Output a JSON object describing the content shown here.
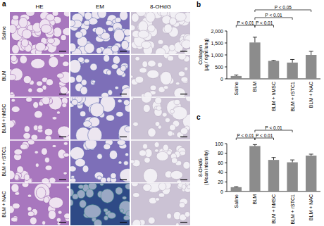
{
  "panel_a": {
    "label": "a",
    "columns": [
      "HE",
      "EM",
      "8-OHdG"
    ],
    "rows": [
      "Saline",
      "BLM",
      "BLM + hMSC",
      "BLM + rSTC1",
      "BLM + NAC"
    ]
  },
  "chart_data": [
    {
      "type": "bar",
      "title": "b",
      "y_label": [
        "Collagen",
        "(µg / right lung)"
      ],
      "categories": [
        "Saline",
        "BLM",
        "BLM + hMSC",
        "BLM + rSTC1",
        "BLM + NAC"
      ],
      "values": [
        120,
        1520,
        750,
        680,
        1000
      ],
      "errors": [
        40,
        220,
        20,
        130,
        150
      ],
      "color": "#8c8c8c",
      "ylim": [
        0,
        2000
      ],
      "yticks": [
        0,
        500,
        {
          "value": 1000,
          "label": "1,000"
        },
        {
          "value": 1500,
          "label": "1,500"
        },
        {
          "value": 2000,
          "label": "2,000"
        }
      ],
      "annotations": [
        {
          "text": "P < 0.01",
          "from": 0,
          "to": 1
        },
        {
          "text": "P < 0.01",
          "from": 1,
          "to": 2
        },
        {
          "text": "P < 0.01",
          "from": 1,
          "to": 3
        },
        {
          "text": "P < 0.05",
          "from": 1,
          "to": 4
        }
      ]
    },
    {
      "type": "bar",
      "title": "c",
      "y_label": [
        "8-OHdG",
        "(Mean intensity)"
      ],
      "categories": [
        "Saline",
        "BLM",
        "BLM + hMSC",
        "BLM + rSTC1",
        "BLM + NAC"
      ],
      "values": [
        9,
        95,
        66,
        61,
        75
      ],
      "errors": [
        1,
        3,
        5,
        5,
        3
      ],
      "color": "#8c8c8c",
      "ylim": [
        0,
        100
      ],
      "yticks": [
        0,
        20,
        40,
        60,
        80,
        100
      ],
      "annotations": [
        {
          "text": "P < 0.01",
          "from": 0,
          "to": 1
        },
        {
          "text": "P < 0.01",
          "from": 1,
          "to": 2
        },
        {
          "text": "P < 0.01",
          "from": 1,
          "to": 3
        }
      ]
    }
  ]
}
